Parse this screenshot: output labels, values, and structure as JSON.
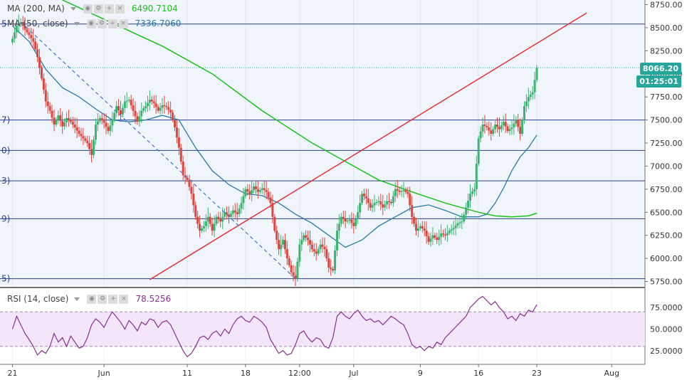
{
  "legends": {
    "ma200": {
      "label": "MA (200, MA)",
      "value": "6490.7104",
      "color": "#19c219"
    },
    "ma50": {
      "label": "MA (50, close)",
      "value": "7336.7060",
      "color": "#2a7aa8"
    },
    "rsi": {
      "label": "RSI (14, close)",
      "value": "78.5256",
      "color": "#8a2f8f"
    }
  },
  "price_tags": {
    "last_price": "8066.20",
    "countdown": "01:25:01"
  },
  "fib_labels": [
    "5",
    "7)",
    "0)",
    "3)",
    "9)",
    "5)"
  ],
  "colors": {
    "up": "#3cb371",
    "down": "#e0453c",
    "trendline": "#e8303a",
    "dashed_trend": "#4a73c6",
    "hline": "#2a3f8f",
    "rsi_band": "#f3e6fb",
    "last_price_tag": "#26a69a",
    "plot_bg": "#f0f5fc"
  },
  "chart_data": [
    {
      "type": "candlestick",
      "instrument_price_axis": {
        "ticks": [
          "8750.00",
          "8500.00",
          "8250.00",
          "8000.00",
          "7750.00",
          "7500.00",
          "7250.00",
          "7000.00",
          "6750.00",
          "6500.00",
          "6250.00",
          "6000.00",
          "5750.00"
        ],
        "range": [
          5700,
          8800
        ]
      },
      "x_axis_labels": [
        {
          "label": "21",
          "day": 0
        },
        {
          "label": "Jun",
          "day": 11
        },
        {
          "label": "11",
          "day": 21
        },
        {
          "label": "18",
          "day": 28
        },
        {
          "label": "12:00",
          "day": 34.5
        },
        {
          "label": "Jul",
          "day": 41
        },
        {
          "label": "9",
          "day": 49
        },
        {
          "label": "16",
          "day": 56
        },
        {
          "label": "23",
          "day": 63
        },
        {
          "label": "Aug",
          "day": 72
        }
      ],
      "x_range_days": [
        -1.5,
        76
      ],
      "candle_anchors": [
        [
          0,
          8380
        ],
        [
          0.5,
          8520
        ],
        [
          1,
          8560
        ],
        [
          1.5,
          8480
        ],
        [
          2,
          8420
        ],
        [
          2.5,
          8350
        ],
        [
          3,
          8180
        ],
        [
          3.5,
          7950
        ],
        [
          4,
          7700
        ],
        [
          4.5,
          7600
        ],
        [
          5,
          7450
        ],
        [
          5.5,
          7550
        ],
        [
          6,
          7430
        ],
        [
          6.5,
          7520
        ],
        [
          7,
          7480
        ],
        [
          7.5,
          7420
        ],
        [
          8,
          7350
        ],
        [
          8.5,
          7300
        ],
        [
          9,
          7250
        ],
        [
          9.5,
          7120
        ],
        [
          10,
          7450
        ],
        [
          10.5,
          7520
        ],
        [
          11,
          7470
        ],
        [
          11.5,
          7380
        ],
        [
          12,
          7500
        ],
        [
          12.5,
          7650
        ],
        [
          13,
          7560
        ],
        [
          13.5,
          7700
        ],
        [
          14,
          7720
        ],
        [
          14.5,
          7600
        ],
        [
          15,
          7480
        ],
        [
          15.5,
          7600
        ],
        [
          16,
          7650
        ],
        [
          16.5,
          7720
        ],
        [
          17,
          7680
        ],
        [
          17.5,
          7600
        ],
        [
          18,
          7660
        ],
        [
          18.5,
          7640
        ],
        [
          19,
          7580
        ],
        [
          19.5,
          7420
        ],
        [
          20,
          7200
        ],
        [
          20.5,
          6900
        ],
        [
          21,
          6850
        ],
        [
          21.5,
          6700
        ],
        [
          22,
          6450
        ],
        [
          22.5,
          6300
        ],
        [
          23,
          6350
        ],
        [
          23.5,
          6450
        ],
        [
          24,
          6300
        ],
        [
          24.5,
          6450
        ],
        [
          25,
          6400
        ],
        [
          25.5,
          6500
        ],
        [
          26,
          6450
        ],
        [
          26.5,
          6520
        ],
        [
          27,
          6480
        ],
        [
          27.5,
          6600
        ],
        [
          28,
          6750
        ],
        [
          28.5,
          6700
        ],
        [
          29,
          6780
        ],
        [
          29.5,
          6720
        ],
        [
          30,
          6760
        ],
        [
          30.5,
          6720
        ],
        [
          31,
          6600
        ],
        [
          31.5,
          6300
        ],
        [
          32,
          6100
        ],
        [
          32.5,
          6200
        ],
        [
          33,
          6000
        ],
        [
          33.5,
          5850
        ],
        [
          34,
          5780
        ],
        [
          34.5,
          6150
        ],
        [
          35,
          6250
        ],
        [
          35.5,
          6200
        ],
        [
          36,
          6100
        ],
        [
          36.5,
          6050
        ],
        [
          37,
          6150
        ],
        [
          37.5,
          6100
        ],
        [
          38,
          5900
        ],
        [
          38.5,
          5870
        ],
        [
          39,
          6300
        ],
        [
          39.5,
          6450
        ],
        [
          40,
          6400
        ],
        [
          40.5,
          6420
        ],
        [
          41,
          6350
        ],
        [
          41.5,
          6500
        ],
        [
          42,
          6700
        ],
        [
          42.5,
          6650
        ],
        [
          43,
          6550
        ],
        [
          43.5,
          6600
        ],
        [
          44,
          6620
        ],
        [
          44.5,
          6550
        ],
        [
          45,
          6620
        ],
        [
          45.5,
          6600
        ],
        [
          46,
          6750
        ],
        [
          46.5,
          6720
        ],
        [
          47,
          6740
        ],
        [
          47.5,
          6700
        ],
        [
          48,
          6450
        ],
        [
          48.5,
          6300
        ],
        [
          49,
          6350
        ],
        [
          49.5,
          6300
        ],
        [
          50,
          6180
        ],
        [
          50.5,
          6250
        ],
        [
          51,
          6200
        ],
        [
          51.5,
          6270
        ],
        [
          52,
          6250
        ],
        [
          52.5,
          6300
        ],
        [
          53,
          6330
        ],
        [
          53.5,
          6380
        ],
        [
          54,
          6400
        ],
        [
          54.5,
          6550
        ],
        [
          55,
          6700
        ],
        [
          55.5,
          6750
        ],
        [
          56,
          7300
        ],
        [
          56.5,
          7450
        ],
        [
          57,
          7420
        ],
        [
          57.5,
          7350
        ],
        [
          58,
          7450
        ],
        [
          58.5,
          7400
        ],
        [
          59,
          7480
        ],
        [
          59.5,
          7380
        ],
        [
          60,
          7420
        ],
        [
          60.5,
          7500
        ],
        [
          61,
          7350
        ],
        [
          61.5,
          7650
        ],
        [
          62,
          7750
        ],
        [
          62.5,
          7800
        ],
        [
          63,
          8066
        ]
      ],
      "ma50_anchors": [
        [
          0,
          8520
        ],
        [
          2,
          8350
        ],
        [
          4,
          8050
        ],
        [
          6,
          7850
        ],
        [
          8,
          7750
        ],
        [
          10,
          7620
        ],
        [
          12,
          7500
        ],
        [
          14,
          7480
        ],
        [
          16,
          7500
        ],
        [
          18,
          7550
        ],
        [
          20,
          7500
        ],
        [
          22,
          7200
        ],
        [
          24,
          6950
        ],
        [
          26,
          6800
        ],
        [
          28,
          6700
        ],
        [
          30,
          6680
        ],
        [
          32,
          6600
        ],
        [
          34,
          6480
        ],
        [
          36,
          6380
        ],
        [
          38,
          6250
        ],
        [
          40,
          6120
        ],
        [
          42,
          6200
        ],
        [
          44,
          6350
        ],
        [
          46,
          6450
        ],
        [
          48,
          6550
        ],
        [
          50,
          6580
        ],
        [
          52,
          6520
        ],
        [
          54,
          6450
        ],
        [
          56,
          6450
        ],
        [
          57,
          6480
        ],
        [
          58,
          6600
        ],
        [
          59,
          6760
        ],
        [
          60,
          6950
        ],
        [
          61,
          7100
        ],
        [
          62,
          7200
        ],
        [
          63,
          7336
        ]
      ],
      "ma200_anchors": [
        [
          6,
          8800
        ],
        [
          12,
          8550
        ],
        [
          18,
          8300
        ],
        [
          24,
          8000
        ],
        [
          30,
          7600
        ],
        [
          36,
          7250
        ],
        [
          40,
          7050
        ],
        [
          44,
          6850
        ],
        [
          48,
          6720
        ],
        [
          52,
          6600
        ],
        [
          56,
          6500
        ],
        [
          58,
          6460
        ],
        [
          60,
          6450
        ],
        [
          62,
          6460
        ],
        [
          63,
          6490
        ]
      ],
      "trendline_points": [
        [
          16.5,
          5770
        ],
        [
          69,
          8660
        ]
      ],
      "dashed_trend_points": [
        [
          1,
          8560
        ],
        [
          34,
          5780
        ]
      ],
      "horizontal_levels": [
        8540,
        7500,
        7170,
        6840,
        6430,
        5780
      ],
      "last_price_level": 8066.2
    },
    {
      "type": "line",
      "indicator": "RSI (14, close)",
      "y_ticks": [
        "75.0000",
        "50.0000",
        "25.0000"
      ],
      "y_range": [
        10,
        95
      ],
      "band": [
        30,
        70
      ],
      "series_anchors": [
        [
          0,
          50
        ],
        [
          0.5,
          65
        ],
        [
          1,
          55
        ],
        [
          1.5,
          45
        ],
        [
          2,
          38
        ],
        [
          2.5,
          30
        ],
        [
          3,
          20
        ],
        [
          3.5,
          25
        ],
        [
          4,
          22
        ],
        [
          4.5,
          30
        ],
        [
          5,
          45
        ],
        [
          5.5,
          35
        ],
        [
          6,
          40
        ],
        [
          6.5,
          30
        ],
        [
          7,
          42
        ],
        [
          7.5,
          35
        ],
        [
          8,
          28
        ],
        [
          8.5,
          30
        ],
        [
          9,
          40
        ],
        [
          9.5,
          55
        ],
        [
          10,
          62
        ],
        [
          10.5,
          58
        ],
        [
          11,
          52
        ],
        [
          11.5,
          62
        ],
        [
          12,
          70
        ],
        [
          12.5,
          64
        ],
        [
          13,
          58
        ],
        [
          13.5,
          50
        ],
        [
          14,
          60
        ],
        [
          14.5,
          55
        ],
        [
          15,
          48
        ],
        [
          15.5,
          58
        ],
        [
          16,
          55
        ],
        [
          16.5,
          62
        ],
        [
          17,
          60
        ],
        [
          17.5,
          52
        ],
        [
          18,
          58
        ],
        [
          18.5,
          60
        ],
        [
          19,
          55
        ],
        [
          19.5,
          45
        ],
        [
          20,
          35
        ],
        [
          20.5,
          25
        ],
        [
          21,
          18
        ],
        [
          21.5,
          22
        ],
        [
          22,
          30
        ],
        [
          22.5,
          40
        ],
        [
          23,
          42
        ],
        [
          23.5,
          38
        ],
        [
          24,
          45
        ],
        [
          24.5,
          48
        ],
        [
          25,
          42
        ],
        [
          25.5,
          50
        ],
        [
          26,
          45
        ],
        [
          26.5,
          55
        ],
        [
          27,
          62
        ],
        [
          27.5,
          65
        ],
        [
          28,
          60
        ],
        [
          28.5,
          58
        ],
        [
          29,
          65
        ],
        [
          29.5,
          62
        ],
        [
          30,
          58
        ],
        [
          30.5,
          52
        ],
        [
          31,
          38
        ],
        [
          31.5,
          30
        ],
        [
          32,
          22
        ],
        [
          32.5,
          25
        ],
        [
          33,
          20
        ],
        [
          33.5,
          22
        ],
        [
          34,
          32
        ],
        [
          34.5,
          45
        ],
        [
          35,
          48
        ],
        [
          35.5,
          40
        ],
        [
          36,
          35
        ],
        [
          36.5,
          40
        ],
        [
          37,
          38
        ],
        [
          37.5,
          30
        ],
        [
          38,
          28
        ],
        [
          38.5,
          40
        ],
        [
          39,
          65
        ],
        [
          39.5,
          70
        ],
        [
          40,
          65
        ],
        [
          40.5,
          62
        ],
        [
          41,
          68
        ],
        [
          41.5,
          72
        ],
        [
          42,
          65
        ],
        [
          42.5,
          60
        ],
        [
          43,
          62
        ],
        [
          43.5,
          58
        ],
        [
          44,
          60
        ],
        [
          44.5,
          55
        ],
        [
          45,
          60
        ],
        [
          45.5,
          65
        ],
        [
          46,
          62
        ],
        [
          46.5,
          58
        ],
        [
          47,
          55
        ],
        [
          47.5,
          45
        ],
        [
          48,
          32
        ],
        [
          48.5,
          28
        ],
        [
          49,
          30
        ],
        [
          49.5,
          25
        ],
        [
          50,
          30
        ],
        [
          50.5,
          28
        ],
        [
          51,
          35
        ],
        [
          51.5,
          32
        ],
        [
          52,
          40
        ],
        [
          52.5,
          45
        ],
        [
          53,
          50
        ],
        [
          53.5,
          55
        ],
        [
          54,
          60
        ],
        [
          54.5,
          65
        ],
        [
          55,
          75
        ],
        [
          55.5,
          80
        ],
        [
          56,
          85
        ],
        [
          56.5,
          88
        ],
        [
          57,
          83
        ],
        [
          57.5,
          78
        ],
        [
          58,
          82
        ],
        [
          58.5,
          75
        ],
        [
          59,
          70
        ],
        [
          59.5,
          62
        ],
        [
          60,
          65
        ],
        [
          60.5,
          60
        ],
        [
          61,
          68
        ],
        [
          61.5,
          65
        ],
        [
          62,
          72
        ],
        [
          62.5,
          70
        ],
        [
          63,
          78.5
        ]
      ]
    }
  ]
}
